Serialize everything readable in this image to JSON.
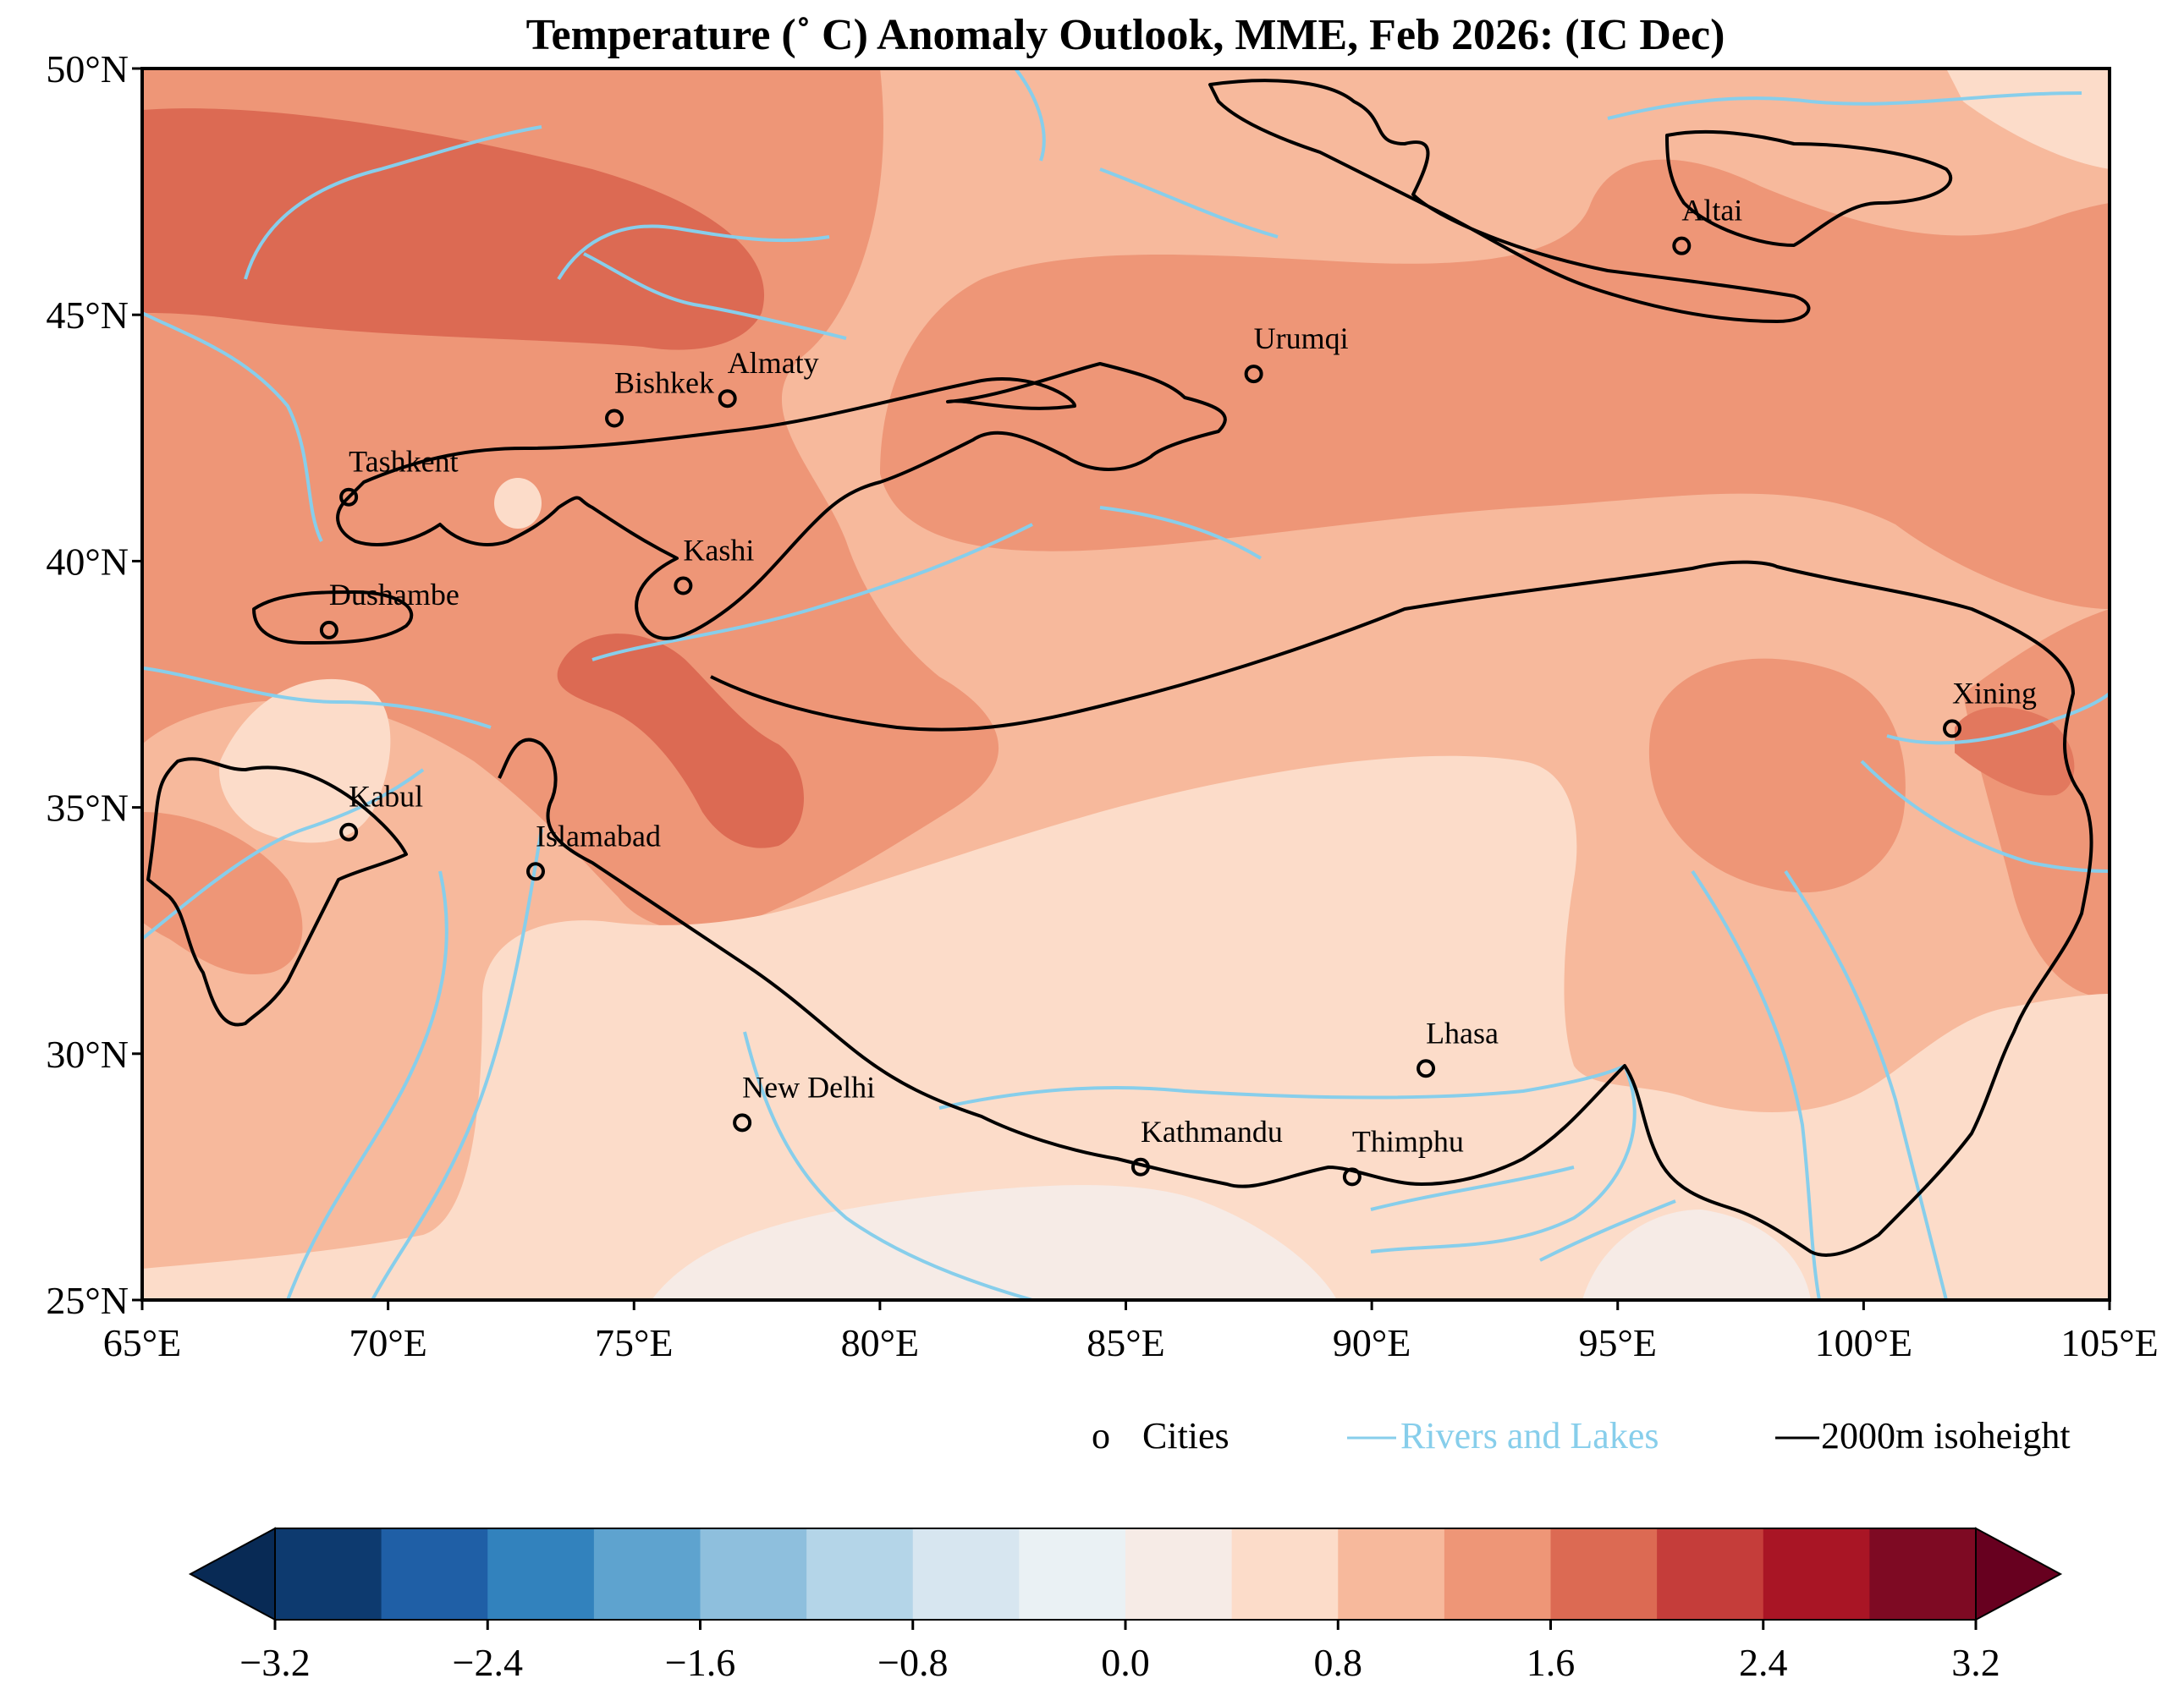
{
  "title": "Temperature (˚ C) Anomaly Outlook, MME, Feb  2026:  (IC Dec)",
  "axes": {
    "lon_min": 65,
    "lon_max": 105,
    "lat_min": 25,
    "lat_max": 50,
    "x_ticks": [
      "65°E",
      "70°E",
      "75°E",
      "80°E",
      "85°E",
      "90°E",
      "95°E",
      "100°E",
      "105°E"
    ],
    "x_tick_values": [
      65,
      70,
      75,
      80,
      85,
      90,
      95,
      100,
      105
    ],
    "y_ticks": [
      "25°N",
      "30°N",
      "35°N",
      "40°N",
      "45°N",
      "50°N"
    ],
    "y_tick_values": [
      25,
      30,
      35,
      40,
      45,
      50
    ]
  },
  "cities": [
    {
      "name": "Altai",
      "lon": 96.3,
      "lat": 46.4
    },
    {
      "name": "Urumqi",
      "lon": 87.6,
      "lat": 43.8
    },
    {
      "name": "Almaty",
      "lon": 76.9,
      "lat": 43.3
    },
    {
      "name": "Bishkek",
      "lon": 74.6,
      "lat": 42.9
    },
    {
      "name": "Tashkent",
      "lon": 69.2,
      "lat": 41.3
    },
    {
      "name": "Kashi",
      "lon": 76.0,
      "lat": 39.5
    },
    {
      "name": "Dushambe",
      "lon": 68.8,
      "lat": 38.6
    },
    {
      "name": "Xining",
      "lon": 101.8,
      "lat": 36.6
    },
    {
      "name": "Kabul",
      "lon": 69.2,
      "lat": 34.5
    },
    {
      "name": "Islamabad",
      "lon": 73.0,
      "lat": 33.7
    },
    {
      "name": "Lhasa",
      "lon": 91.1,
      "lat": 29.7
    },
    {
      "name": "New Delhi",
      "lon": 77.2,
      "lat": 28.6
    },
    {
      "name": "Kathmandu",
      "lon": 85.3,
      "lat": 27.7
    },
    {
      "name": "Thimphu",
      "lon": 89.6,
      "lat": 27.5
    }
  ],
  "legend": {
    "cities_marker": "o",
    "cities_label": "Cities",
    "rivers_label": "Rivers and Lakes",
    "isoheight_label": "2000m isoheight"
  },
  "colorbar": {
    "tick_labels": [
      "−3.2",
      "−2.4",
      "−1.6",
      "−0.8",
      "0.0",
      "0.8",
      "1.6",
      "2.4",
      "3.2"
    ],
    "tick_values": [
      -3.2,
      -2.4,
      -1.6,
      -0.8,
      0.0,
      0.8,
      1.6,
      2.4,
      3.2
    ],
    "levels": [
      -3.2,
      -2.8,
      -2.4,
      -2.0,
      -1.6,
      -1.2,
      -0.8,
      -0.4,
      0.0,
      0.4,
      0.8,
      1.2,
      1.6,
      2.0,
      2.4,
      2.8,
      3.2
    ],
    "colors": [
      "#0d3a6f",
      "#1f5fa6",
      "#3282bd",
      "#5ea3cf",
      "#8ebfdd",
      "#b4d5e8",
      "#d7e6f0",
      "#eaf1f4",
      "#f6ebe6",
      "#fcdcc9",
      "#f7b99c",
      "#ee9677",
      "#dc6a53",
      "#c53d3a",
      "#a91525",
      "#7e0a23"
    ],
    "extend_low_color": "#082a55",
    "extend_high_color": "#67001f"
  },
  "colors": {
    "river": "#87ceeb",
    "isoheight": "#000000",
    "city_marker": "#000000"
  }
}
